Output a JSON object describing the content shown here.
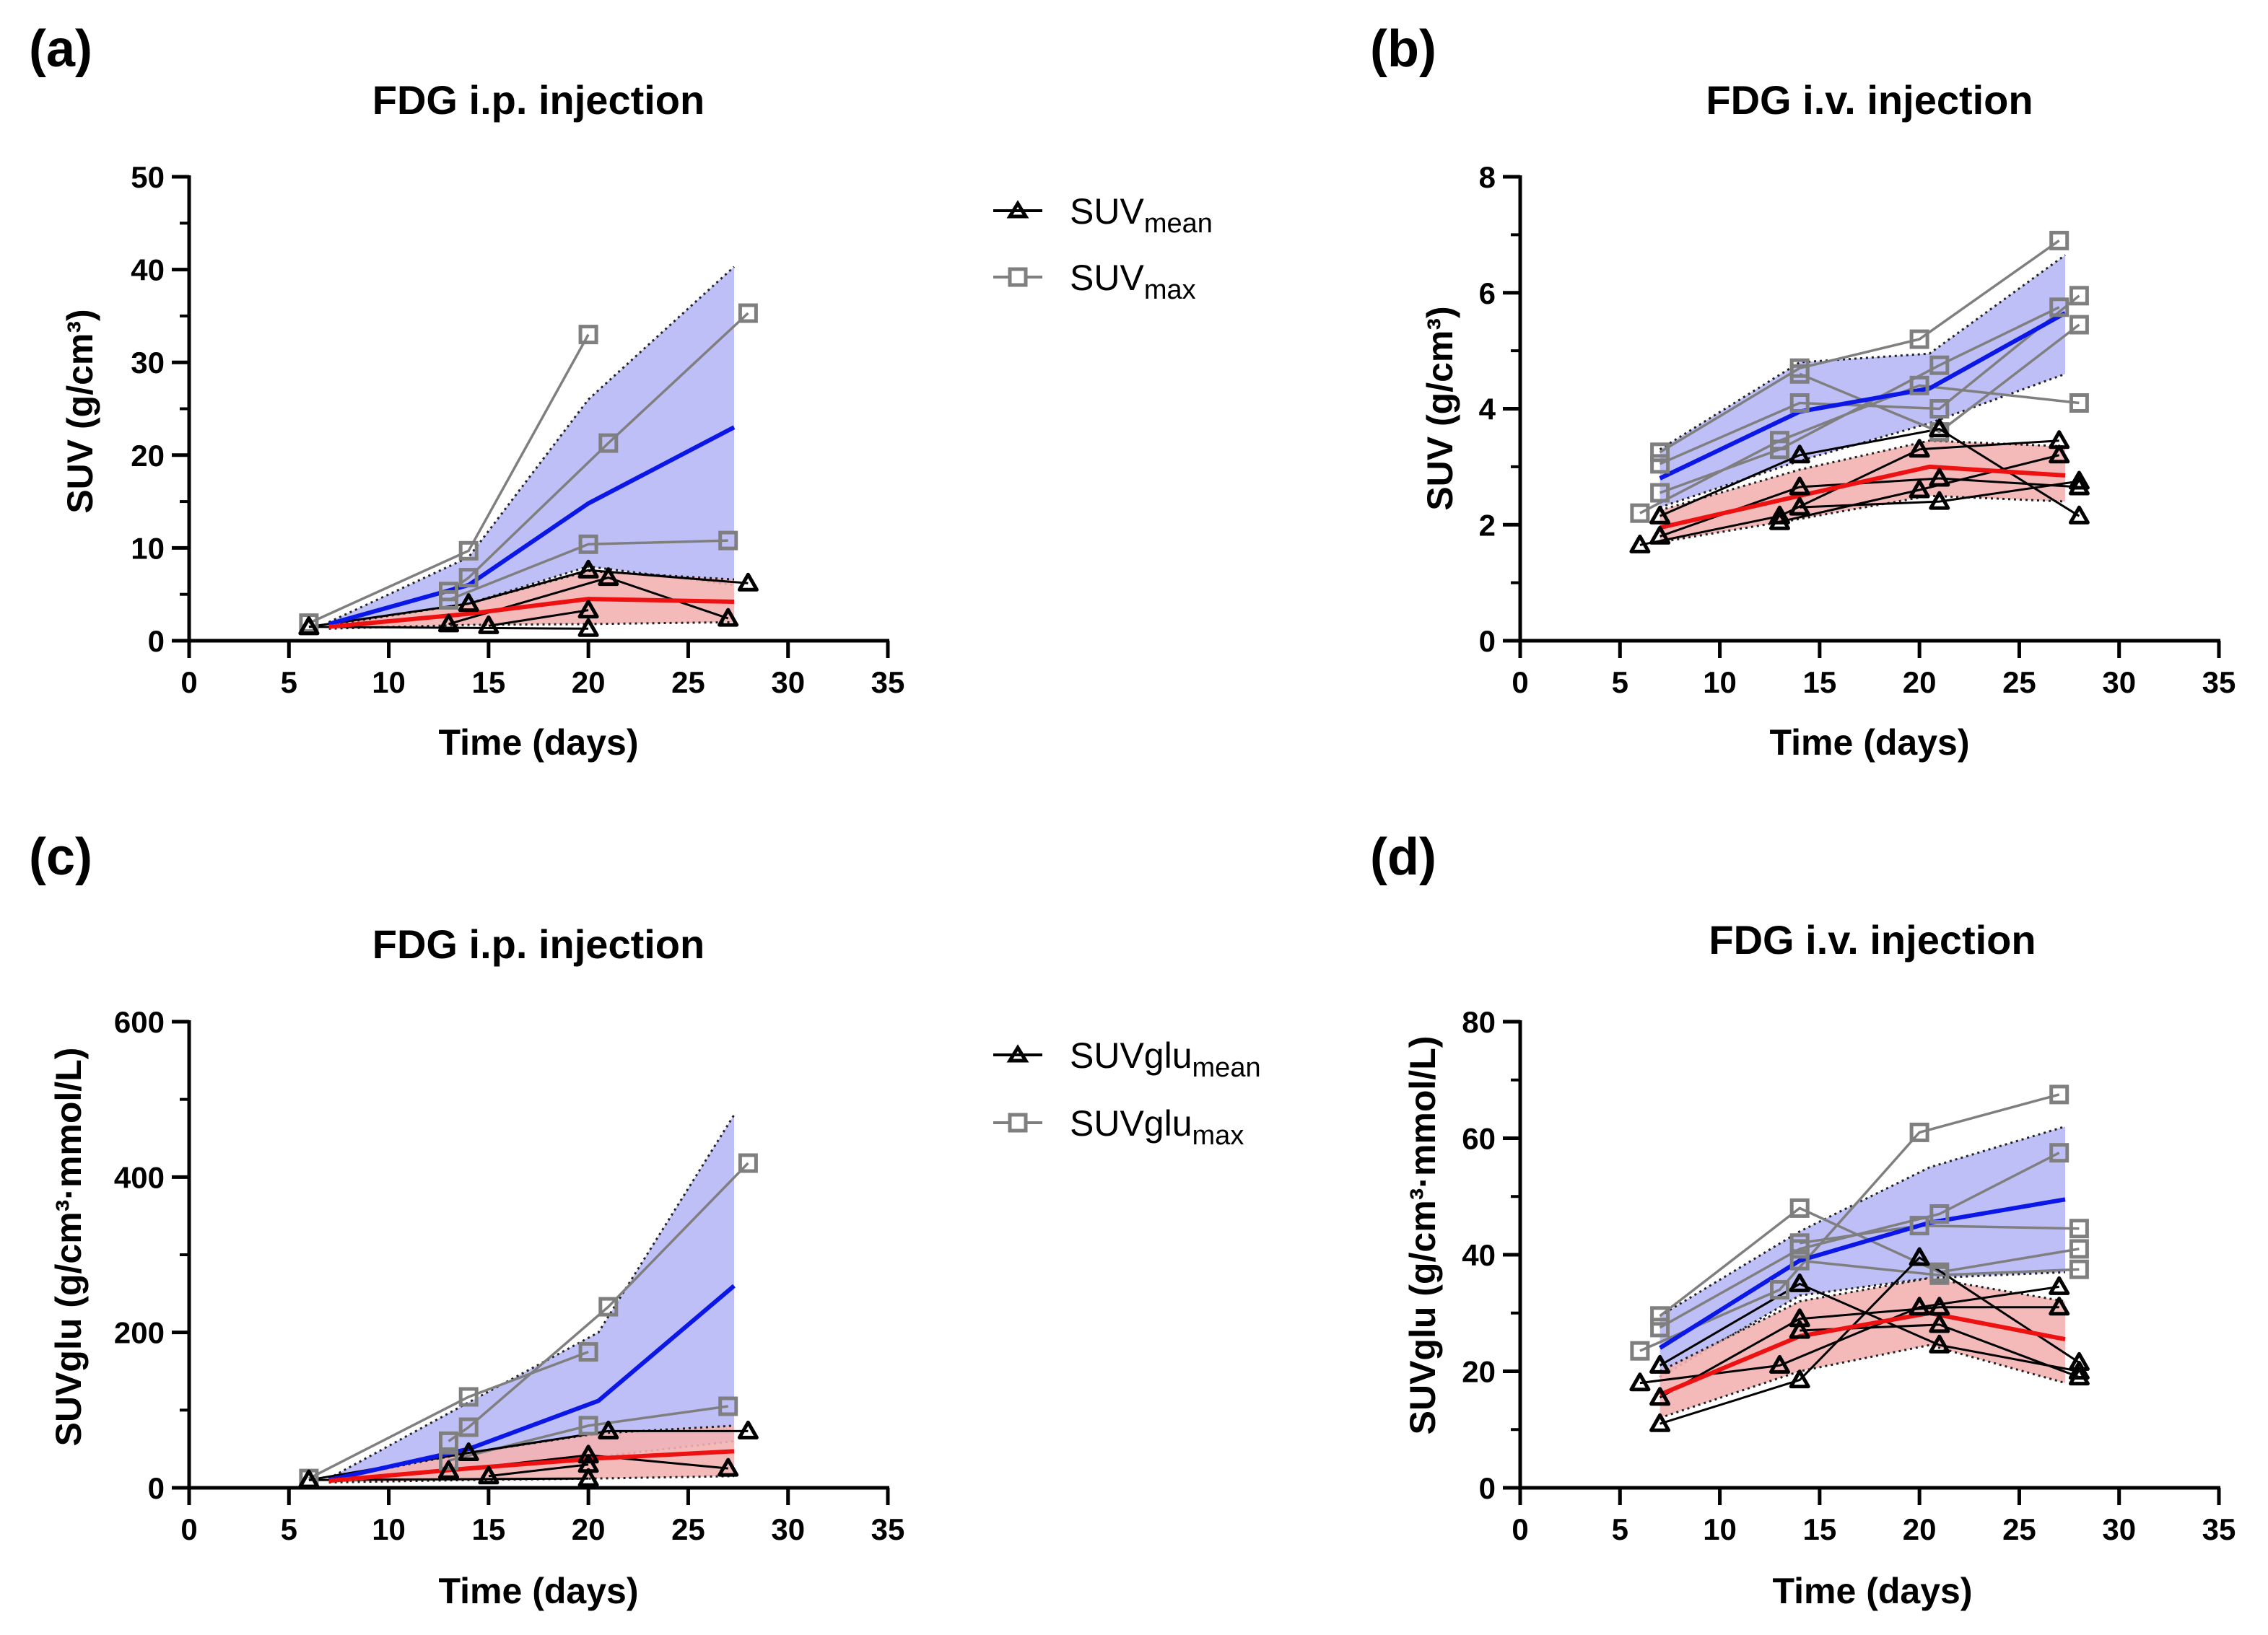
{
  "colors": {
    "mean_marker": "#000000",
    "max_marker": "#7f7f7f",
    "max_avg_line": "#0b17e6",
    "mean_avg_line": "#ee1111",
    "max_band": "#b8b8f7",
    "mean_band": "#f3b3b3"
  },
  "legends": [
    {
      "mean_base": "SUV",
      "mean_sub": "mean",
      "max_base": "SUV",
      "max_sub": "max"
    },
    {
      "mean_base": "SUVglu",
      "mean_sub": "mean",
      "max_base": "SUVglu",
      "max_sub": "max"
    }
  ],
  "chart_data": [
    {
      "panel_label": "(a)",
      "type": "line",
      "title": "FDG i.p. injection",
      "xlabel": "Time (days)",
      "ylabel": "SUV (g/cm³)",
      "xlim": [
        0,
        35
      ],
      "xticks": [
        0,
        5,
        10,
        15,
        20,
        25,
        30,
        35
      ],
      "ylim": [
        0,
        50
      ],
      "yticks": [
        0,
        10,
        20,
        30,
        40,
        50
      ],
      "max_subjects": [
        [
          [
            6,
            1.9
          ],
          [
            14,
            9.7
          ],
          [
            20,
            33
          ]
        ],
        [
          [
            13,
            5.3
          ],
          [
            14,
            6.8
          ],
          [
            21,
            21.3
          ],
          [
            28,
            35.3
          ]
        ],
        [
          [
            13,
            4.4
          ],
          [
            20,
            10.4
          ],
          [
            27,
            10.8
          ]
        ]
      ],
      "mean_subjects": [
        [
          [
            6,
            1.5
          ],
          [
            14,
            4
          ],
          [
            20,
            7.6
          ],
          [
            28,
            6.2
          ]
        ],
        [
          [
            13,
            1.8
          ],
          [
            21,
            6.8
          ],
          [
            27,
            2.4
          ]
        ],
        [
          [
            15,
            1.6
          ],
          [
            20,
            3.3
          ]
        ],
        [
          [
            6,
            1.5
          ],
          [
            20,
            1.3
          ]
        ]
      ],
      "max_avg": [
        [
          7,
          1.8
        ],
        [
          14,
          6
        ],
        [
          20,
          14.8
        ],
        [
          27.3,
          23
        ]
      ],
      "max_band_upper": [
        [
          7,
          2
        ],
        [
          14,
          9
        ],
        [
          20,
          26
        ],
        [
          27.3,
          40.3
        ]
      ],
      "max_band_lower": [
        [
          7,
          1.6
        ],
        [
          14,
          4
        ],
        [
          20,
          8
        ],
        [
          27.3,
          6
        ]
      ],
      "mean_avg": [
        [
          7,
          1.5
        ],
        [
          14,
          2.9
        ],
        [
          20,
          4.5
        ],
        [
          27.3,
          4.2
        ]
      ],
      "mean_band_upper": [
        [
          7,
          1.7
        ],
        [
          14,
          4
        ],
        [
          20,
          7.5
        ],
        [
          27.3,
          6.6
        ]
      ],
      "mean_band_lower": [
        [
          7,
          1.3
        ],
        [
          14,
          1.7
        ],
        [
          20,
          1.8
        ],
        [
          27.3,
          2
        ]
      ]
    },
    {
      "panel_label": "(b)",
      "type": "line",
      "title": "FDG i.v. injection",
      "xlabel": "Time (days)",
      "ylabel": "SUV (g/cm³)",
      "xlim": [
        0,
        35
      ],
      "xticks": [
        0,
        5,
        10,
        15,
        20,
        25,
        30,
        35
      ],
      "ylim": [
        0,
        8
      ],
      "yticks": [
        0,
        2,
        4,
        6,
        8
      ],
      "max_subjects": [
        [
          [
            7,
            3.25
          ],
          [
            14,
            4.7
          ],
          [
            20,
            5.2
          ],
          [
            27,
            6.9
          ]
        ],
        [
          [
            7,
            3.05
          ],
          [
            14,
            4.1
          ],
          [
            21,
            4.0
          ],
          [
            28,
            5.95
          ]
        ],
        [
          [
            6,
            2.2
          ],
          [
            13,
            3.45
          ],
          [
            20,
            4.4
          ],
          [
            28,
            4.1
          ]
        ],
        [
          [
            7,
            2.55
          ],
          [
            13,
            3.3
          ],
          [
            21,
            4.75
          ],
          [
            27,
            5.75
          ]
        ],
        [
          [
            14,
            4.6
          ],
          [
            21,
            3.6
          ],
          [
            28,
            5.45
          ]
        ]
      ],
      "mean_subjects": [
        [
          [
            7,
            2.15
          ],
          [
            14,
            3.2
          ],
          [
            21,
            3.65
          ],
          [
            28,
            2.15
          ]
        ],
        [
          [
            6,
            1.65
          ],
          [
            13,
            2.15
          ],
          [
            20,
            3.3
          ],
          [
            27,
            3.45
          ]
        ],
        [
          [
            7,
            1.8
          ],
          [
            14,
            2.65
          ],
          [
            21,
            2.8
          ],
          [
            28,
            2.65
          ]
        ],
        [
          [
            13,
            2.05
          ],
          [
            20,
            2.6
          ],
          [
            27,
            3.2
          ]
        ],
        [
          [
            14,
            2.3
          ],
          [
            21,
            2.4
          ],
          [
            28,
            2.75
          ]
        ]
      ],
      "max_avg": [
        [
          7,
          2.8
        ],
        [
          14,
          3.95
        ],
        [
          20.5,
          4.35
        ],
        [
          27.3,
          5.65
        ]
      ],
      "max_band_upper": [
        [
          7,
          3.3
        ],
        [
          14,
          4.8
        ],
        [
          20.5,
          4.95
        ],
        [
          27.3,
          6.65
        ]
      ],
      "max_band_lower": [
        [
          7,
          2.3
        ],
        [
          14,
          3.1
        ],
        [
          20.5,
          3.75
        ],
        [
          27.3,
          4.6
        ]
      ],
      "mean_avg": [
        [
          7,
          1.95
        ],
        [
          14,
          2.5
        ],
        [
          20.5,
          3.0
        ],
        [
          27.3,
          2.85
        ]
      ],
      "mean_band_upper": [
        [
          7,
          2.25
        ],
        [
          14,
          2.95
        ],
        [
          20.5,
          3.45
        ],
        [
          27.3,
          3.35
        ]
      ],
      "mean_band_lower": [
        [
          7,
          1.7
        ],
        [
          14,
          2.1
        ],
        [
          20.5,
          2.5
        ],
        [
          27.3,
          2.4
        ]
      ]
    },
    {
      "panel_label": "(c)",
      "type": "line",
      "title": "FDG i.p. injection",
      "xlabel": "Time (days)",
      "ylabel": "SUVglu (g/cm³·mmol/L)",
      "xlim": [
        0,
        35
      ],
      "xticks": [
        0,
        5,
        10,
        15,
        20,
        25,
        30,
        35
      ],
      "ylim": [
        0,
        600
      ],
      "yticks": [
        0,
        200,
        400,
        600
      ],
      "max_subjects": [
        [
          [
            6,
            12
          ],
          [
            14,
            117
          ],
          [
            20,
            175
          ]
        ],
        [
          [
            13,
            60
          ],
          [
            14,
            78
          ],
          [
            21,
            233
          ],
          [
            28,
            418
          ]
        ],
        [
          [
            13,
            35
          ],
          [
            20,
            80
          ],
          [
            27,
            105
          ]
        ]
      ],
      "mean_subjects": [
        [
          [
            6,
            10
          ],
          [
            14,
            45
          ],
          [
            21,
            73
          ],
          [
            28,
            73
          ]
        ],
        [
          [
            13,
            22
          ],
          [
            20,
            42
          ],
          [
            27,
            25
          ]
        ],
        [
          [
            15,
            15
          ],
          [
            20,
            30
          ]
        ],
        [
          [
            6,
            10
          ],
          [
            20,
            12
          ]
        ]
      ],
      "max_avg": [
        [
          7,
          10
        ],
        [
          14,
          50
        ],
        [
          20.5,
          112
        ],
        [
          27.3,
          260
        ]
      ],
      "max_band_upper": [
        [
          7,
          12
        ],
        [
          14,
          110
        ],
        [
          20.5,
          200
        ],
        [
          27.3,
          480
        ]
      ],
      "max_band_lower": [
        [
          7,
          8
        ],
        [
          14,
          25
        ],
        [
          20.5,
          40
        ],
        [
          27.3,
          60
        ]
      ],
      "mean_avg": [
        [
          7,
          9
        ],
        [
          14,
          25
        ],
        [
          20.5,
          38
        ],
        [
          27.3,
          47
        ]
      ],
      "mean_band_upper": [
        [
          7,
          11
        ],
        [
          14,
          45
        ],
        [
          20.5,
          70
        ],
        [
          27.3,
          80
        ]
      ],
      "mean_band_lower": [
        [
          7,
          7
        ],
        [
          14,
          10
        ],
        [
          20.5,
          12
        ],
        [
          27.3,
          15
        ]
      ]
    },
    {
      "panel_label": "(d)",
      "type": "line",
      "title": "FDG i.v. injection",
      "xlabel": "Time (days)",
      "ylabel": "SUVglu (g/cm³·mmol/L)",
      "xlim": [
        0,
        35
      ],
      "xticks": [
        0,
        5,
        10,
        15,
        20,
        25,
        30,
        35
      ],
      "ylim": [
        0,
        80
      ],
      "yticks": [
        0,
        20,
        40,
        60,
        80
      ],
      "max_subjects": [
        [
          [
            6,
            23.5
          ],
          [
            13,
            34
          ],
          [
            20,
            61
          ],
          [
            27,
            67.5
          ]
        ],
        [
          [
            7,
            29.5
          ],
          [
            14,
            48
          ],
          [
            21,
            37
          ],
          [
            28,
            41
          ]
        ],
        [
          [
            7,
            27.5
          ],
          [
            14,
            41
          ],
          [
            21,
            47
          ],
          [
            27,
            57.5
          ]
        ],
        [
          [
            14,
            42
          ],
          [
            20,
            45
          ],
          [
            28,
            44.5
          ]
        ],
        [
          [
            14,
            39
          ],
          [
            21,
            36.5
          ],
          [
            28,
            37.5
          ]
        ]
      ],
      "mean_subjects": [
        [
          [
            7,
            21
          ],
          [
            14,
            35
          ],
          [
            21,
            24.5
          ],
          [
            28,
            20
          ]
        ],
        [
          [
            6,
            18
          ],
          [
            13,
            21
          ],
          [
            20,
            31
          ],
          [
            27,
            34.5
          ]
        ],
        [
          [
            7,
            11
          ],
          [
            14,
            18.5
          ],
          [
            20,
            39.5
          ],
          [
            28,
            21.5
          ]
        ],
        [
          [
            7,
            15.5
          ],
          [
            14,
            29
          ],
          [
            21,
            31
          ],
          [
            27,
            31
          ]
        ],
        [
          [
            14,
            27
          ],
          [
            21,
            28
          ],
          [
            28,
            19
          ]
        ]
      ],
      "max_avg": [
        [
          7,
          24
        ],
        [
          14,
          39
        ],
        [
          20.5,
          45.5
        ],
        [
          27.3,
          49.5
        ]
      ],
      "max_band_upper": [
        [
          7,
          29.5
        ],
        [
          14,
          44
        ],
        [
          20.5,
          55
        ],
        [
          27.3,
          62
        ]
      ],
      "max_band_lower": [
        [
          7,
          19
        ],
        [
          14,
          33
        ],
        [
          20.5,
          36
        ],
        [
          27.3,
          37
        ]
      ],
      "mean_avg": [
        [
          7,
          16
        ],
        [
          14,
          26
        ],
        [
          20.5,
          30
        ],
        [
          27.3,
          25.5
        ]
      ],
      "mean_band_upper": [
        [
          7,
          20
        ],
        [
          14,
          32
        ],
        [
          20.5,
          36
        ],
        [
          27.3,
          32
        ]
      ],
      "mean_band_lower": [
        [
          7,
          12
        ],
        [
          14,
          20
        ],
        [
          20.5,
          24.5
        ],
        [
          27.3,
          18
        ]
      ]
    }
  ]
}
